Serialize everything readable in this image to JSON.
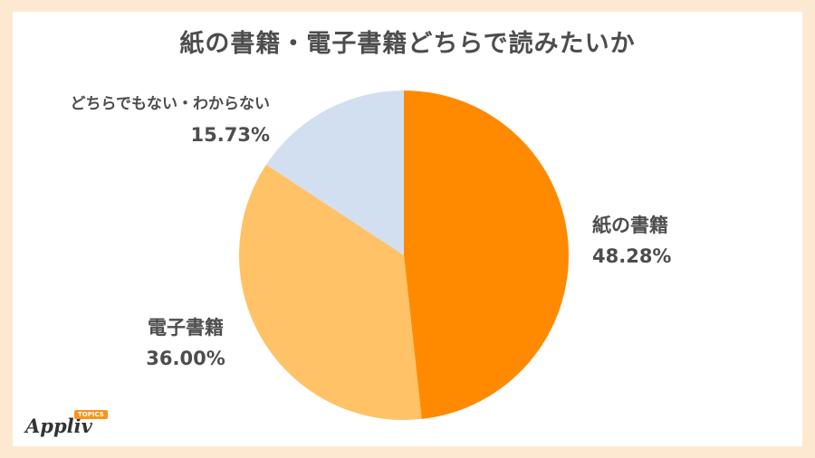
{
  "chart_data": {
    "type": "pie",
    "title": "紙の書籍・電子書籍どちらで読みたいか",
    "slices": [
      {
        "label": "紙の書籍",
        "value": 48.28,
        "value_label": "48.28%",
        "color": "#ff8a00"
      },
      {
        "label": "電子書籍",
        "value": 36.0,
        "value_label": "36.00%",
        "color": "#ffc266"
      },
      {
        "label": "どちらでもない・わからない",
        "value": 15.73,
        "value_label": "15.73%",
        "color": "#d2dff0"
      }
    ],
    "start_angle_deg": 0,
    "direction": "clockwise"
  },
  "logo": {
    "text": "Appliv",
    "badge": "TOPICS"
  },
  "colors": {
    "background": "#fde9d2",
    "card": "#ffffff",
    "text": "#4d4d4d"
  }
}
